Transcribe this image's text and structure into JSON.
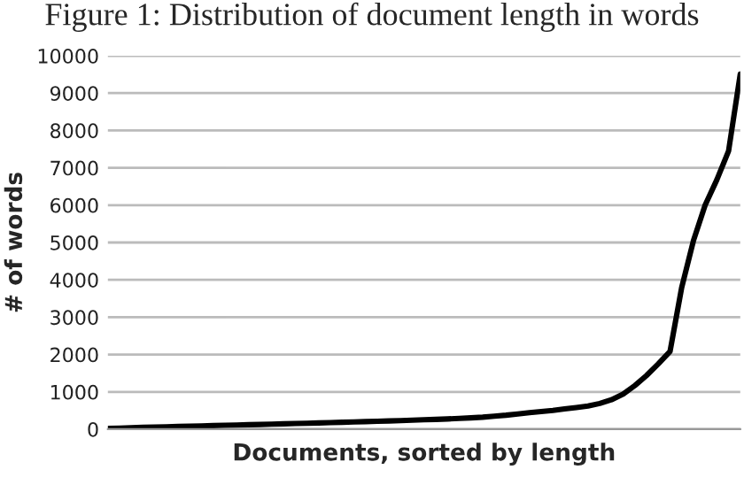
{
  "chart_data": {
    "type": "line",
    "title": "Figure 1: Distribution of document length in words",
    "xlabel": "Documents, sorted by length",
    "ylabel": "# of words",
    "categories": [
      null,
      null,
      null,
      null,
      null,
      null,
      null,
      null,
      null,
      null,
      null,
      null,
      null,
      null,
      null,
      null,
      null,
      null,
      null,
      null,
      null,
      null,
      null,
      null,
      null,
      null,
      null,
      null,
      null,
      null,
      null,
      null,
      null,
      null,
      null,
      null,
      null,
      null,
      null,
      null,
      null,
      null,
      null,
      null,
      null,
      null,
      null,
      null,
      null,
      null,
      null,
      null,
      null,
      null,
      null
    ],
    "series": [
      {
        "color": "#000000",
        "values": [
          20,
          30,
          40,
          50,
          58,
          66,
          74,
          82,
          90,
          98,
          105,
          112,
          120,
          128,
          136,
          144,
          152,
          160,
          168,
          176,
          185,
          194,
          203,
          212,
          222,
          232,
          242,
          253,
          264,
          276,
          290,
          305,
          322,
          350,
          375,
          410,
          445,
          475,
          505,
          545,
          580,
          620,
          690,
          790,
          940,
          1170,
          1440,
          1750,
          2080,
          3800,
          5050,
          6000,
          6680,
          7450,
          9510
        ]
      }
    ],
    "ylim": [
      0,
      10000
    ],
    "yticks": [
      0,
      1000,
      2000,
      3000,
      4000,
      5000,
      6000,
      7000,
      8000,
      9000,
      10000
    ],
    "grid": "y",
    "marker": "none",
    "line_style": "solid"
  }
}
